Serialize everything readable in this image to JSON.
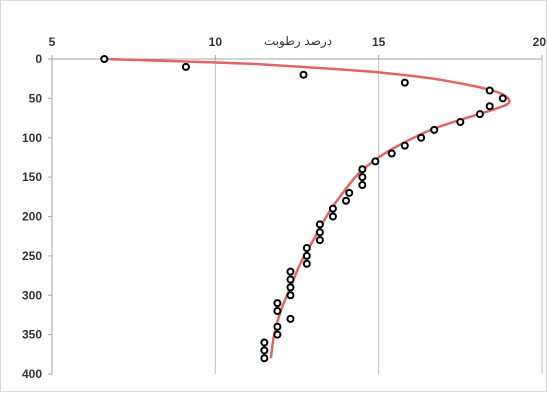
{
  "chart_data": {
    "type": "scatter",
    "title": "",
    "xlabel": "درصد رطوبت",
    "ylabel": "",
    "x_axis_position": "top",
    "y_axis_inverted": true,
    "xlim": [
      5,
      20
    ],
    "ylim": [
      0,
      400
    ],
    "x_ticks": [
      5,
      10,
      15,
      20
    ],
    "x_tick_labels": [
      "5",
      "10",
      "15",
      "20"
    ],
    "y_ticks": [
      0,
      50,
      100,
      150,
      200,
      250,
      300,
      350,
      400
    ],
    "y_tick_labels": [
      "0",
      "50",
      "100",
      "150",
      "200",
      "250",
      "300",
      "350",
      "400"
    ],
    "grid": "vertical",
    "legend": "none",
    "colors": {
      "fit_line": "#e06666",
      "points_stroke": "#000000",
      "grid": "#bfbfbf",
      "axis": "#a6a6a6"
    },
    "series": [
      {
        "type": "scatter",
        "points": [
          {
            "x": 6.6,
            "y": 0
          },
          {
            "x": 9.1,
            "y": 10
          },
          {
            "x": 12.7,
            "y": 20
          },
          {
            "x": 15.8,
            "y": 30
          },
          {
            "x": 18.4,
            "y": 40
          },
          {
            "x": 18.8,
            "y": 50
          },
          {
            "x": 18.4,
            "y": 60
          },
          {
            "x": 18.1,
            "y": 70
          },
          {
            "x": 17.5,
            "y": 80
          },
          {
            "x": 16.7,
            "y": 90
          },
          {
            "x": 16.3,
            "y": 100
          },
          {
            "x": 15.8,
            "y": 110
          },
          {
            "x": 15.4,
            "y": 120
          },
          {
            "x": 14.9,
            "y": 130
          },
          {
            "x": 14.5,
            "y": 140
          },
          {
            "x": 14.5,
            "y": 150
          },
          {
            "x": 14.5,
            "y": 160
          },
          {
            "x": 14.1,
            "y": 170
          },
          {
            "x": 14.0,
            "y": 180
          },
          {
            "x": 13.6,
            "y": 190
          },
          {
            "x": 13.6,
            "y": 200
          },
          {
            "x": 13.2,
            "y": 210
          },
          {
            "x": 13.2,
            "y": 220
          },
          {
            "x": 13.2,
            "y": 230
          },
          {
            "x": 12.8,
            "y": 240
          },
          {
            "x": 12.8,
            "y": 250
          },
          {
            "x": 12.8,
            "y": 260
          },
          {
            "x": 12.3,
            "y": 270
          },
          {
            "x": 12.3,
            "y": 280
          },
          {
            "x": 12.3,
            "y": 290
          },
          {
            "x": 12.3,
            "y": 300
          },
          {
            "x": 11.9,
            "y": 310
          },
          {
            "x": 11.9,
            "y": 320
          },
          {
            "x": 12.3,
            "y": 330
          },
          {
            "x": 11.9,
            "y": 340
          },
          {
            "x": 11.9,
            "y": 350
          },
          {
            "x": 11.5,
            "y": 360
          },
          {
            "x": 11.5,
            "y": 370
          },
          {
            "x": 11.5,
            "y": 380
          }
        ]
      },
      {
        "type": "line",
        "points": [
          {
            "x": 6.6,
            "y": 0
          },
          {
            "x": 9.0,
            "y": 3
          },
          {
            "x": 11.0,
            "y": 6
          },
          {
            "x": 13.0,
            "y": 11
          },
          {
            "x": 15.0,
            "y": 17
          },
          {
            "x": 16.5,
            "y": 24
          },
          {
            "x": 17.5,
            "y": 31
          },
          {
            "x": 18.3,
            "y": 38
          },
          {
            "x": 18.8,
            "y": 45
          },
          {
            "x": 19.0,
            "y": 55
          },
          {
            "x": 18.6,
            "y": 63
          },
          {
            "x": 17.6,
            "y": 76
          },
          {
            "x": 16.6,
            "y": 90
          },
          {
            "x": 15.6,
            "y": 110
          },
          {
            "x": 15.0,
            "y": 125
          },
          {
            "x": 14.4,
            "y": 145
          },
          {
            "x": 13.9,
            "y": 170
          },
          {
            "x": 13.4,
            "y": 200
          },
          {
            "x": 13.0,
            "y": 230
          },
          {
            "x": 12.6,
            "y": 260
          },
          {
            "x": 12.3,
            "y": 290
          },
          {
            "x": 12.0,
            "y": 320
          },
          {
            "x": 11.8,
            "y": 350
          },
          {
            "x": 11.7,
            "y": 380
          }
        ]
      }
    ]
  }
}
